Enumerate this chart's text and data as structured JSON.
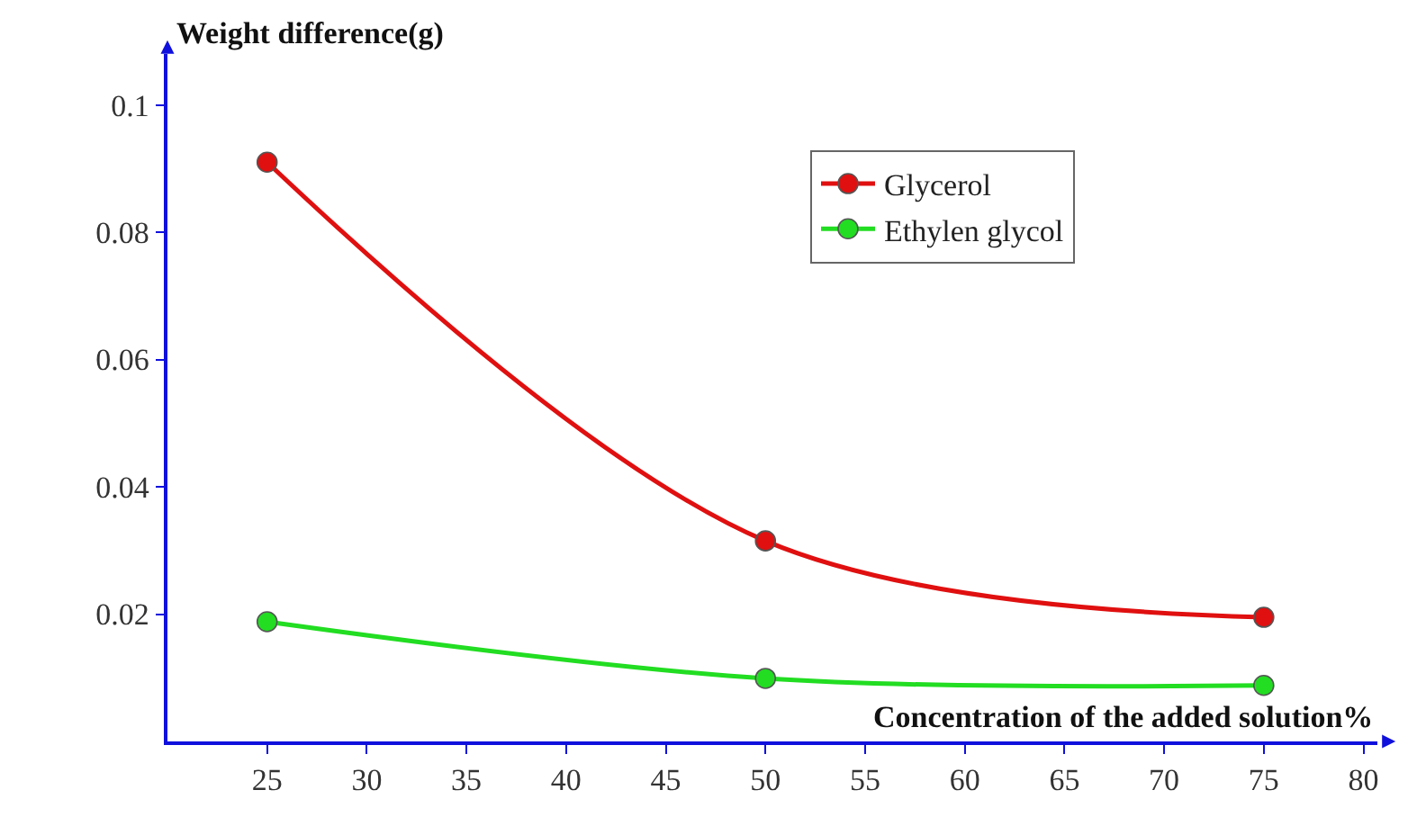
{
  "chart_data": {
    "type": "line",
    "xlabel": "Concentration of the added solution%",
    "ylabel": "Weight difference(g)",
    "x": [
      25,
      50,
      75
    ],
    "series": [
      {
        "name": "Glycerol",
        "color": "#e01010",
        "values": [
          0.091,
          0.0315,
          0.0195
        ]
      },
      {
        "name": "Ethylen glycol",
        "color": "#22dd22",
        "values": [
          0.0188,
          0.0099,
          0.0088
        ]
      }
    ],
    "xlim": [
      20,
      80.7
    ],
    "xticks": [
      25,
      30,
      35,
      40,
      45,
      50,
      55,
      60,
      65,
      70,
      75,
      80
    ],
    "ylim": [
      0,
      0.108
    ],
    "yticks": [
      0.02,
      0.04,
      0.06,
      0.08,
      0.1
    ],
    "legend": "top right",
    "marker": "circle",
    "line_style": "solid"
  }
}
